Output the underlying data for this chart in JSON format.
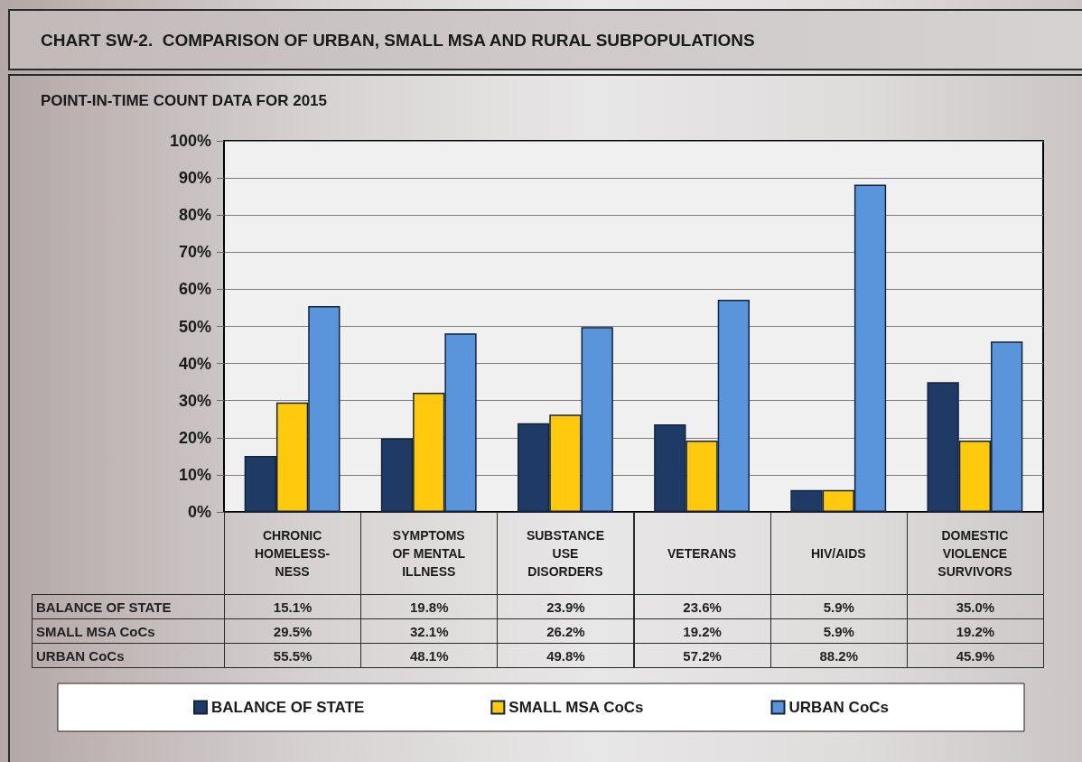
{
  "chart_data": {
    "type": "bar",
    "title": "CHART SW-2.  COMPARISON OF URBAN, SMALL MSA AND RURAL SUBPOPULATIONS",
    "subtitle": "POINT-IN-TIME COUNT DATA FOR 2015",
    "categories": [
      "CHRONIC\nHOMELESS-\nNESS",
      "SYMPTOMS\nOF MENTAL\nILLNESS",
      "SUBSTANCE\nUSE\nDISORDERS",
      "VETERANS",
      "HIV/AIDS",
      "DOMESTIC\nVIOLENCE\nSURVIVORS"
    ],
    "series": [
      {
        "name": "BALANCE OF STATE",
        "color": "#1f3a64",
        "values": [
          15.1,
          19.8,
          23.9,
          23.6,
          5.9,
          35.0
        ],
        "value_labels": [
          "15.1%",
          "19.8%",
          "23.9%",
          "23.6%",
          "5.9%",
          "35.0%"
        ]
      },
      {
        "name": "SMALL MSA CoCs",
        "color": "#ffc90e",
        "values": [
          29.5,
          32.1,
          26.2,
          19.2,
          5.9,
          19.2
        ],
        "value_labels": [
          "29.5%",
          "32.1%",
          "26.2%",
          "19.2%",
          "5.9%",
          "19.2%"
        ]
      },
      {
        "name": "URBAN CoCs",
        "color": "#5a95dc",
        "values": [
          55.5,
          48.1,
          49.8,
          57.2,
          88.2,
          45.9
        ],
        "value_labels": [
          "55.5%",
          "48.1%",
          "49.8%",
          "57.2%",
          "88.2%",
          "45.9%"
        ]
      }
    ],
    "ylim": [
      0,
      100
    ],
    "yticks": [
      {
        "value": 0,
        "label": "0%"
      },
      {
        "value": 10,
        "label": "10%"
      },
      {
        "value": 20,
        "label": "20%"
      },
      {
        "value": 30,
        "label": "30%"
      },
      {
        "value": 40,
        "label": "40%"
      },
      {
        "value": 50,
        "label": "50%"
      },
      {
        "value": 60,
        "label": "60%"
      },
      {
        "value": 70,
        "label": "70%"
      },
      {
        "value": 80,
        "label": "80%"
      },
      {
        "value": 90,
        "label": "90%"
      },
      {
        "value": 100,
        "label": "100%"
      }
    ],
    "grid": "y",
    "legend": "bottom"
  }
}
